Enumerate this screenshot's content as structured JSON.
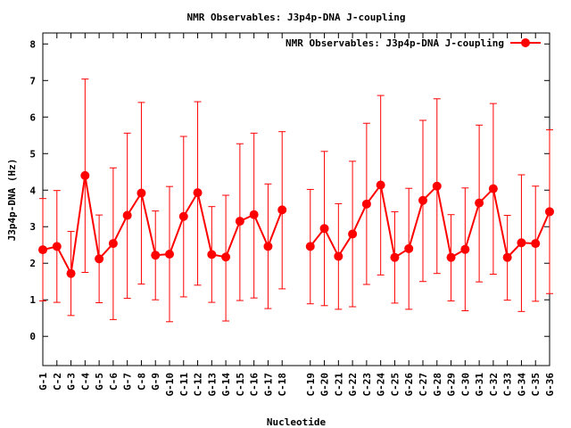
{
  "chart_data": {
    "type": "line",
    "title": "NMR Observables: J3p4p-DNA J-coupling",
    "xlabel": "Nucleotide",
    "ylabel": "J3p4p-DNA (Hz)",
    "ylim": [
      -0.8,
      8.3
    ],
    "yticks": [
      0,
      1,
      2,
      3,
      4,
      5,
      6,
      7,
      8
    ],
    "grid": false,
    "legend_position": "top-right",
    "line_color": "#ff0000",
    "marker": "filled-circle",
    "categories": [
      "G-1",
      "C-2",
      "G-3",
      "C-4",
      "G-5",
      "C-6",
      "G-7",
      "C-8",
      "G-9",
      "G-10",
      "C-11",
      "C-12",
      "G-13",
      "G-14",
      "C-15",
      "C-16",
      "G-17",
      "C-18",
      "C-19",
      "G-20",
      "C-21",
      "G-22",
      "C-23",
      "G-24",
      "C-25",
      "G-26",
      "C-27",
      "G-28",
      "G-29",
      "C-30",
      "G-31",
      "C-32",
      "C-33",
      "G-34",
      "C-35",
      "G-36"
    ],
    "category_positions": [
      1,
      2,
      3,
      4,
      5,
      6,
      7,
      8,
      9,
      10,
      11,
      12,
      13,
      14,
      15,
      16,
      17,
      18,
      20,
      21,
      22,
      23,
      24,
      25,
      26,
      27,
      28,
      29,
      30,
      31,
      32,
      33,
      34,
      35,
      36,
      37
    ],
    "xlim": [
      1,
      37
    ],
    "series": [
      {
        "name": "NMR Observables: J3p4p-DNA J-coupling",
        "segments": [
          [
            0,
            17
          ],
          [
            18,
            35
          ]
        ],
        "values": [
          2.37,
          2.46,
          1.72,
          4.4,
          2.12,
          2.54,
          3.31,
          3.92,
          2.22,
          2.25,
          3.28,
          3.93,
          2.24,
          2.17,
          3.15,
          3.33,
          2.46,
          3.46,
          2.46,
          2.95,
          2.19,
          2.8,
          3.62,
          4.14,
          2.16,
          2.4,
          3.72,
          4.11,
          2.16,
          2.38,
          3.65,
          4.04,
          2.16,
          2.56,
          2.54,
          3.41
        ],
        "err_low": [
          0.97,
          0.93,
          0.57,
          1.75,
          0.92,
          0.46,
          1.04,
          1.43,
          1.0,
          0.4,
          1.08,
          1.4,
          0.93,
          0.42,
          0.98,
          1.05,
          0.76,
          1.3,
          0.89,
          0.84,
          0.74,
          0.81,
          1.42,
          1.68,
          0.91,
          0.74,
          1.5,
          1.72,
          0.97,
          0.7,
          1.49,
          1.7,
          0.99,
          0.68,
          0.96,
          1.17
        ],
        "err_high": [
          3.77,
          3.99,
          2.87,
          7.04,
          3.32,
          4.61,
          5.56,
          6.4,
          3.43,
          4.1,
          5.47,
          6.42,
          3.55,
          3.86,
          5.27,
          5.56,
          4.17,
          5.6,
          4.02,
          5.06,
          3.63,
          4.79,
          5.83,
          6.59,
          3.41,
          4.05,
          5.91,
          6.5,
          3.33,
          4.06,
          5.78,
          6.37,
          3.31,
          4.42,
          4.11,
          5.65
        ]
      }
    ]
  }
}
